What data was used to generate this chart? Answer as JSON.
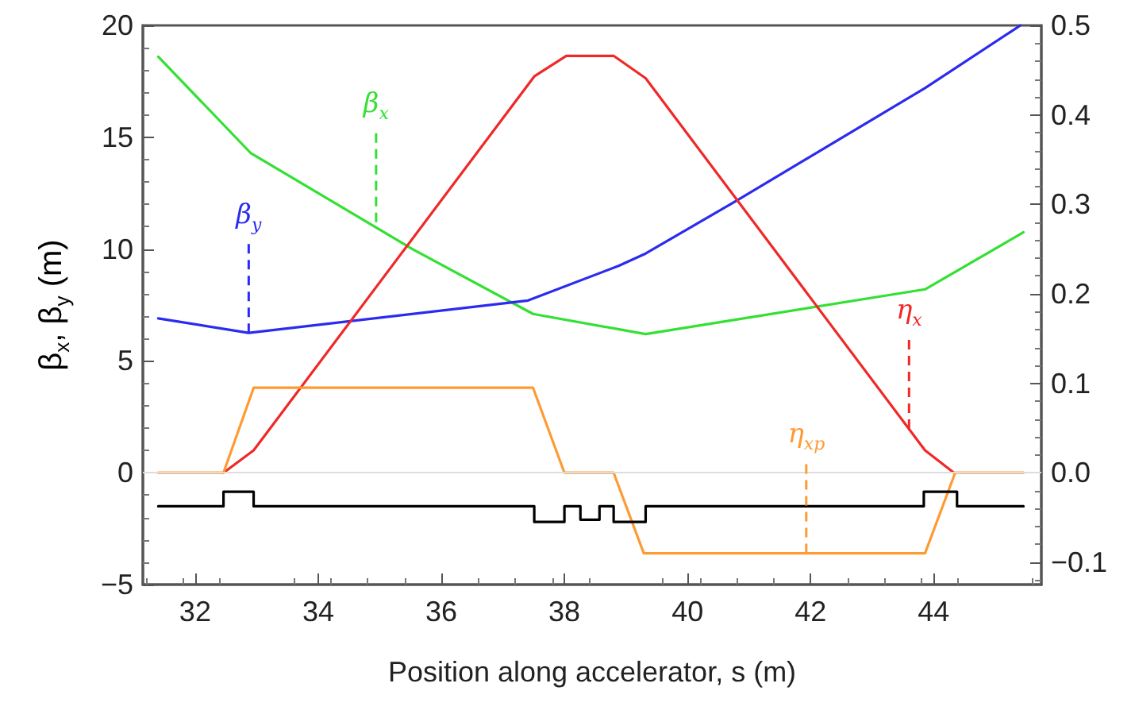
{
  "chart_data": {
    "type": "line",
    "xlabel": "Position along accelerator, s (m)",
    "ylabel": "β$_{x}$,  β$_{y}$ (m)",
    "xlim": [
      31.15,
      45.75
    ],
    "xticks": [
      32,
      34,
      36,
      38,
      40,
      42,
      44
    ],
    "ylim": [
      -5,
      20
    ],
    "yticks": [
      -5,
      0,
      5,
      10,
      15,
      20
    ],
    "y2lim": [
      -0.125,
      0.5
    ],
    "y2ticks": [
      -0.1,
      {
        "value": 0,
        "label": "0.0"
      },
      0.1,
      0.2,
      0.3,
      0.4,
      0.5
    ],
    "ref_lines": [
      {
        "axis": "y",
        "value": 0,
        "color": "#dddddd"
      }
    ],
    "series": [
      {
        "color": "#33e033",
        "x": [
          31.4,
          32.9,
          35.53,
          37.49,
          39.32,
          43.86,
          45.46
        ],
        "values": [
          18.6,
          14.3,
          10.0,
          7.1,
          6.2,
          8.2,
          10.75
        ]
      },
      {
        "color": "#2b2bf0",
        "x": [
          31.4,
          32.87,
          37.41,
          38.88,
          39.32,
          40.82,
          43.86,
          45.41
        ],
        "values": [
          6.9,
          6.25,
          7.7,
          9.25,
          9.8,
          12.2,
          17.2,
          20.0
        ]
      },
      {
        "color": "#f02828",
        "axis": "y2",
        "x": [
          32.46,
          32.95,
          37.51,
          38.03,
          38.8,
          39.32,
          43.86,
          44.33
        ],
        "values": [
          0,
          0.025,
          0.443,
          0.466,
          0.466,
          0.441,
          0.025,
          0
        ]
      },
      {
        "color": "#ff9a33",
        "axis": "y2",
        "x": [
          31.4,
          32.46,
          32.95,
          37.49,
          38.0,
          38.8,
          39.29,
          43.86,
          44.35,
          45.46
        ],
        "values": [
          0,
          0,
          0.095,
          0.095,
          0,
          0,
          -0.09,
          -0.09,
          0,
          0
        ]
      },
      {
        "color": "#000000",
        "x": [
          31.4,
          32.46,
          32.46,
          32.95,
          32.95,
          37.51,
          37.51,
          38.0,
          38.0,
          38.26,
          38.26,
          38.57,
          38.57,
          38.8,
          38.8,
          39.32,
          39.32,
          43.84,
          43.84,
          44.38,
          44.38,
          45.46
        ],
        "values": [
          -1.5,
          -1.5,
          -0.85,
          -0.85,
          -1.5,
          -1.5,
          -2.2,
          -2.2,
          -1.5,
          -1.5,
          -2.1,
          -2.1,
          -1.5,
          -1.5,
          -2.2,
          -2.2,
          -1.5,
          -1.5,
          -0.85,
          -0.85,
          -1.5,
          -1.5
        ]
      }
    ],
    "annotations": [
      {
        "text": "β$_{y}$",
        "x": 32.87,
        "y": 6.25
      },
      {
        "text": "β$_{x}$",
        "x": 34.94,
        "y": 11.2
      },
      {
        "text": "η$_{x}$",
        "x": 43.6,
        "y": 1.96
      },
      {
        "text": "η$_{xp}$",
        "x": 41.93,
        "y": -3.6
      }
    ]
  }
}
